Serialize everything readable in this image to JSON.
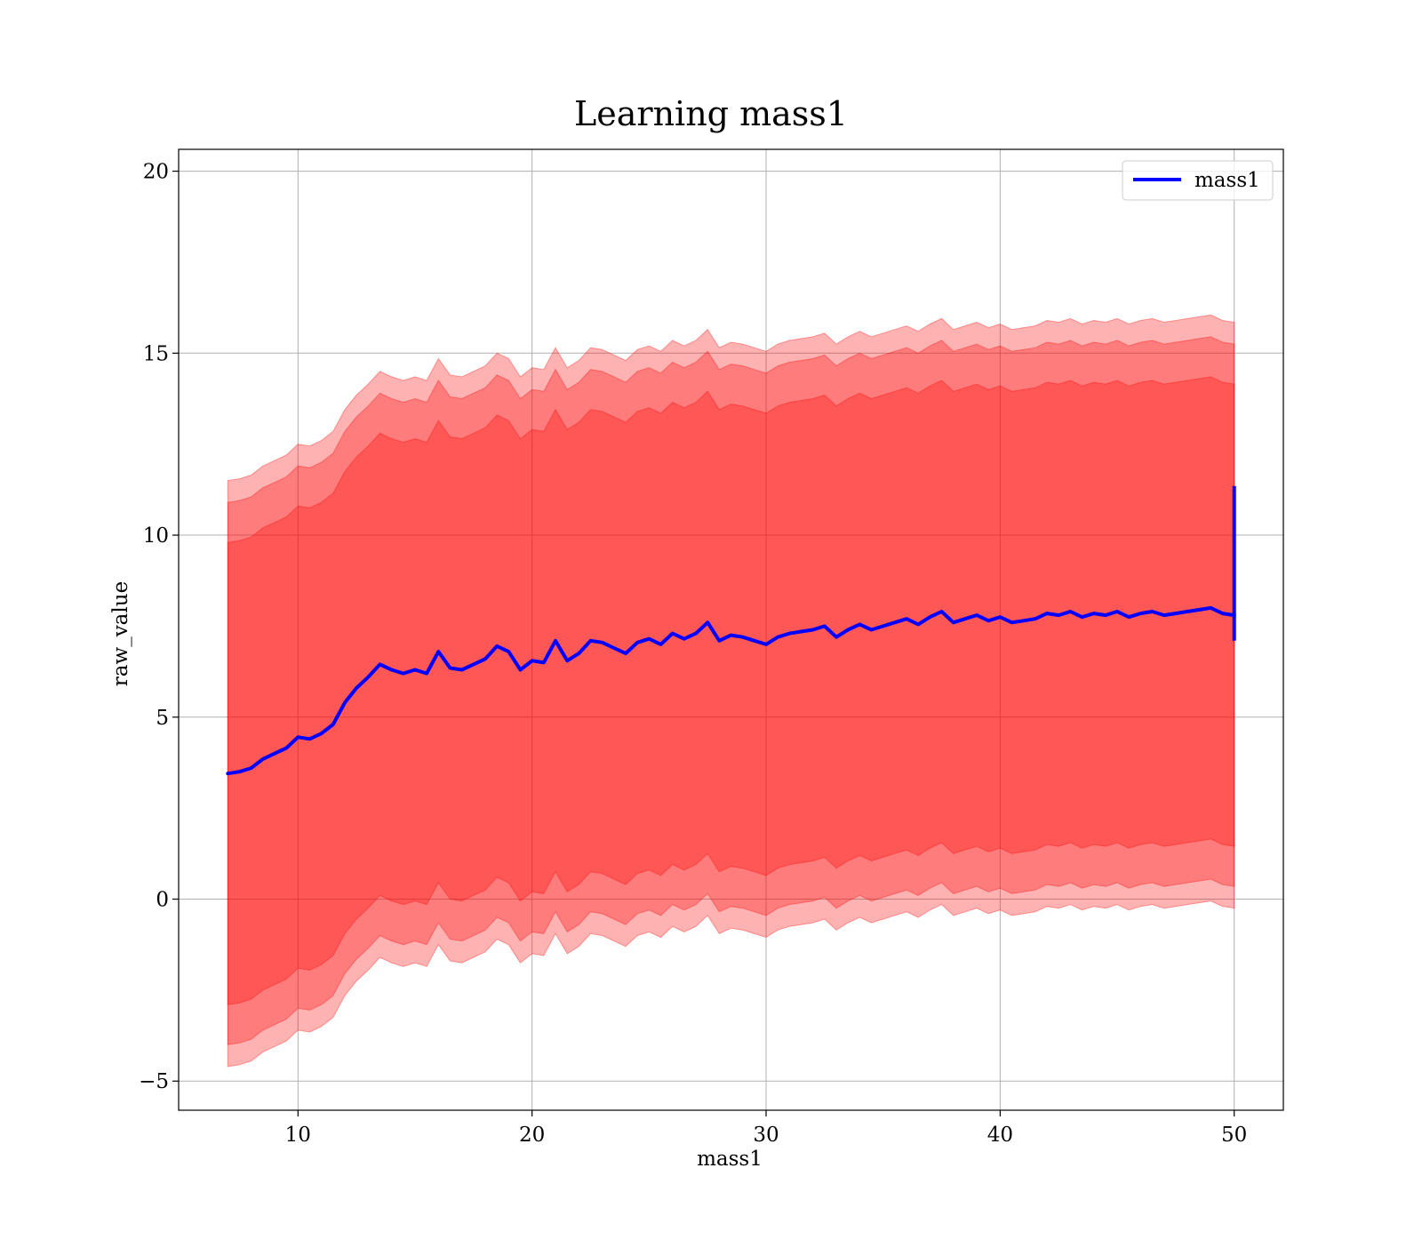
{
  "chart_data": {
    "type": "line",
    "title": "Learning mass1",
    "xlabel": "mass1",
    "ylabel": "raw_value",
    "xlim": [
      4.9,
      52.1
    ],
    "ylim": [
      -5.8,
      20.6
    ],
    "xticks": [
      10,
      20,
      30,
      40,
      50
    ],
    "yticks": [
      -5,
      0,
      5,
      10,
      15,
      20
    ],
    "ytick_labels": [
      "−5",
      "0",
      "5",
      "10",
      "15",
      "20"
    ],
    "grid": true,
    "legend": {
      "placement": "top-right",
      "entries": [
        "mass1"
      ]
    },
    "colors": {
      "line": "#0000ff",
      "band": "#ff0000",
      "grid": "#b0b0b0"
    },
    "series": [
      {
        "name": "mass1",
        "x": [
          7.0,
          7.5,
          8.0,
          8.5,
          9.0,
          9.5,
          10.0,
          10.5,
          11.0,
          11.5,
          12.0,
          12.5,
          13.0,
          13.5,
          14.0,
          14.5,
          15.0,
          15.5,
          16.0,
          16.5,
          17.0,
          17.5,
          18.0,
          18.5,
          19.0,
          19.5,
          20.0,
          20.5,
          21.0,
          21.5,
          22.0,
          22.5,
          23.0,
          23.5,
          24.0,
          24.5,
          25.0,
          25.5,
          26.0,
          26.5,
          27.0,
          27.5,
          28.0,
          28.5,
          29.0,
          29.5,
          30.0,
          30.5,
          31.0,
          31.5,
          32.0,
          32.5,
          33.0,
          33.5,
          34.0,
          34.5,
          35.0,
          35.5,
          36.0,
          36.5,
          37.0,
          37.5,
          38.0,
          38.5,
          39.0,
          39.5,
          40.0,
          40.5,
          41.0,
          41.5,
          42.0,
          42.5,
          43.0,
          43.5,
          44.0,
          44.5,
          45.0,
          45.5,
          46.0,
          46.5,
          47.0,
          47.5,
          48.0,
          48.5,
          49.0,
          49.5,
          50.0
        ],
        "values": [
          3.45,
          3.5,
          3.6,
          3.85,
          4.0,
          4.15,
          4.45,
          4.4,
          4.55,
          4.8,
          5.4,
          5.8,
          6.1,
          6.45,
          6.3,
          6.2,
          6.3,
          6.2,
          6.8,
          6.35,
          6.3,
          6.45,
          6.6,
          6.95,
          6.8,
          6.3,
          6.55,
          6.5,
          7.1,
          6.55,
          6.75,
          7.1,
          7.05,
          6.9,
          6.75,
          7.05,
          7.15,
          7.0,
          7.3,
          7.15,
          7.3,
          7.6,
          7.1,
          7.25,
          7.2,
          7.1,
          7.0,
          7.2,
          7.3,
          7.35,
          7.4,
          7.5,
          7.2,
          7.4,
          7.55,
          7.4,
          7.5,
          7.6,
          7.7,
          7.55,
          7.75,
          7.9,
          7.6,
          7.7,
          7.8,
          7.65,
          7.75,
          7.6,
          7.65,
          7.7,
          7.85,
          7.8,
          7.9,
          7.75,
          7.85,
          7.8,
          7.9,
          7.75,
          7.85,
          7.9,
          7.8,
          7.85,
          7.9,
          7.95,
          8.0,
          7.85,
          7.8
        ],
        "spike": {
          "x": 50.0,
          "low": 7.1,
          "high": 11.35
        },
        "bands": [
          {
            "lower_offset": -8.05,
            "upper_offset": 8.05,
            "opacity": 0.3
          },
          {
            "lower_offset": -7.45,
            "upper_offset": 7.45,
            "opacity": 0.3
          },
          {
            "lower_offset": -6.35,
            "upper_offset": 6.35,
            "opacity": 0.3
          }
        ]
      }
    ]
  }
}
